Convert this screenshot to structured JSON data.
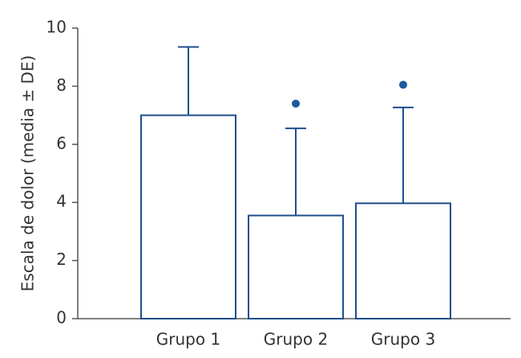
{
  "chart_data": {
    "type": "bar",
    "ylabel": "Escala de dolor (media ± DE)",
    "categories": [
      "Grupo 1",
      "Grupo 2",
      "Grupo 3"
    ],
    "values": [
      7.0,
      3.55,
      3.97
    ],
    "errors": [
      2.35,
      3.0,
      3.3
    ],
    "markers": [
      null,
      7.4,
      8.05
    ],
    "color": "#1f4e8c",
    "marker_color": "#1a5a9e",
    "ylim": [
      0,
      10
    ],
    "yticks": [
      0,
      2,
      4,
      6,
      8,
      10
    ],
    "grid": false
  }
}
